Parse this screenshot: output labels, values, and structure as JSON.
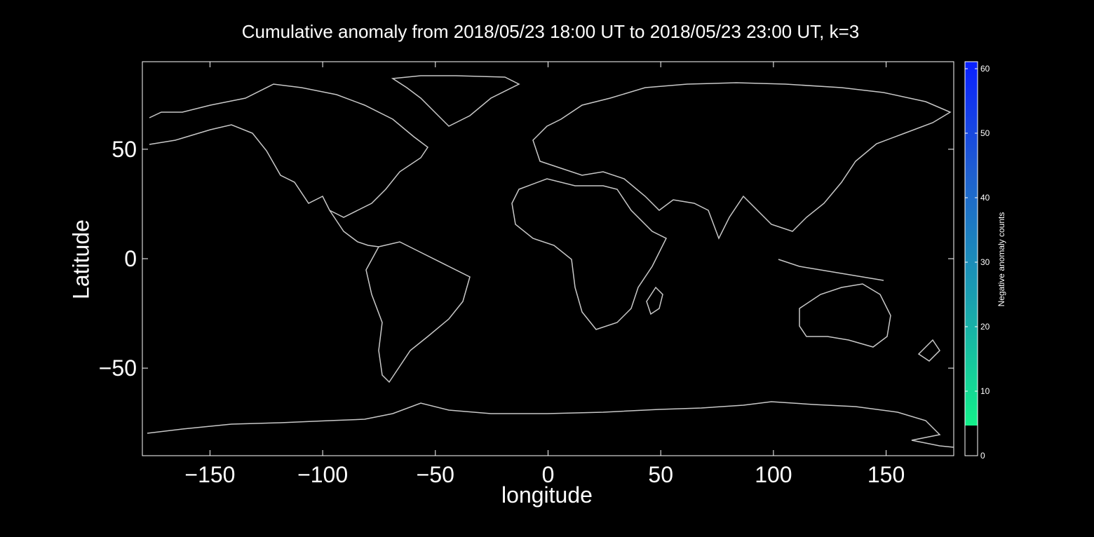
{
  "figure": {
    "title": "Cumulative anomaly from 2018/05/23 18:00 UT to 2018/05/23 23:00 UT, k=3",
    "xlabel": "longitude",
    "ylabel": "Latitude",
    "colorbar_label": "Negative anomaly counts"
  },
  "chart_data": {
    "type": "heatmap",
    "x_ticks": [
      -150,
      -100,
      -50,
      0,
      50,
      100,
      150
    ],
    "y_ticks": [
      -50,
      0,
      50
    ],
    "xlim": [
      -180,
      180
    ],
    "ylim": [
      -90,
      90
    ],
    "colorbar": {
      "ticks": [
        0,
        10,
        20,
        30,
        40,
        50,
        60
      ],
      "range": [
        0,
        60
      ],
      "colors": [
        "#000000",
        "#13f08a",
        "#1a9fb0",
        "#1f5ed0",
        "#0a20ff"
      ],
      "threshold_black_below": 5
    },
    "coastline_color": "#c8c8c8",
    "background_color": "#000000"
  }
}
